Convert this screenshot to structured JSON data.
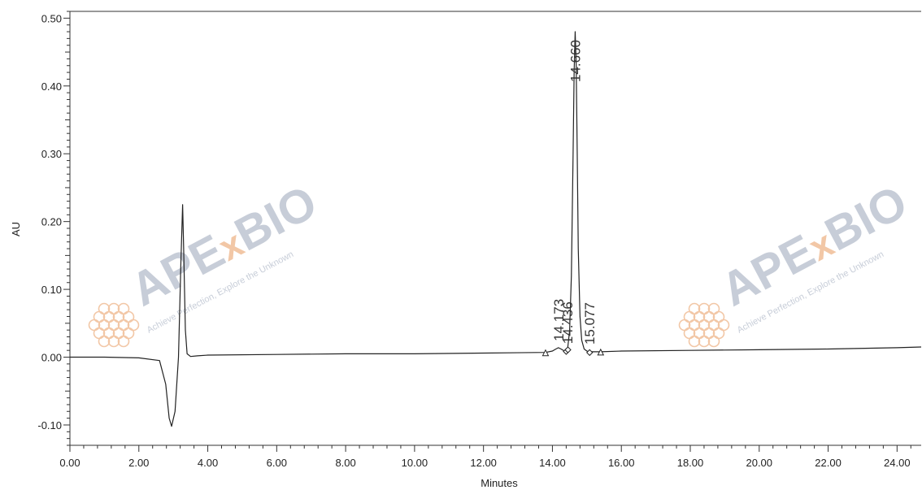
{
  "chart_data": {
    "type": "line",
    "title": "",
    "xlabel": "Minutes",
    "ylabel": "AU",
    "xlim": [
      0,
      24.7
    ],
    "ylim": [
      -0.13,
      0.51
    ],
    "x_ticks": [
      "0.00",
      "2.00",
      "4.00",
      "6.00",
      "8.00",
      "10.00",
      "12.00",
      "14.00",
      "16.00",
      "18.00",
      "20.00",
      "22.00",
      "24.00"
    ],
    "y_ticks": [
      "-0.10",
      "0.00",
      "0.10",
      "0.20",
      "0.30",
      "0.40",
      "0.50"
    ],
    "grid": false,
    "series": [
      {
        "x": [
          0.0,
          1.0,
          2.0,
          2.6,
          2.78,
          2.88,
          2.95,
          3.05,
          3.15,
          3.22,
          3.27,
          3.3,
          3.35,
          3.4,
          3.5,
          3.7,
          4.0,
          6.0,
          8.0,
          10.0,
          12.0,
          13.8,
          14.0,
          14.1,
          14.173,
          14.25,
          14.35,
          14.436,
          14.5,
          14.55,
          14.6,
          14.63,
          14.66,
          14.69,
          14.72,
          14.75,
          14.8,
          14.85,
          14.92,
          15.0,
          15.077,
          15.2,
          15.4,
          16.0,
          18.0,
          20.0,
          22.0,
          24.0,
          24.7
        ],
        "y": [
          0.0,
          0.0,
          -0.001,
          -0.005,
          -0.04,
          -0.09,
          -0.102,
          -0.08,
          0.0,
          0.14,
          0.225,
          0.16,
          0.04,
          0.005,
          0.001,
          0.002,
          0.003,
          0.004,
          0.005,
          0.005,
          0.006,
          0.007,
          0.009,
          0.012,
          0.014,
          0.012,
          0.009,
          0.01,
          0.04,
          0.12,
          0.3,
          0.42,
          0.48,
          0.43,
          0.3,
          0.16,
          0.06,
          0.025,
          0.012,
          0.009,
          0.008,
          0.008,
          0.008,
          0.009,
          0.01,
          0.011,
          0.012,
          0.014,
          0.015
        ]
      }
    ],
    "peak_labels": [
      {
        "text": "14.173",
        "x": 14.173,
        "y": 0.014
      },
      {
        "text": "14.436",
        "x": 14.436,
        "y": 0.01
      },
      {
        "text": "14.660",
        "x": 14.66,
        "y": 0.48
      },
      {
        "text": "15.077",
        "x": 15.077,
        "y": 0.009
      }
    ],
    "baseline_markers": [
      {
        "shape": "triangle",
        "x": 13.8
      },
      {
        "shape": "diamond",
        "x": 14.4
      },
      {
        "shape": "diamond",
        "x": 14.45
      },
      {
        "shape": "diamond",
        "x": 15.08
      },
      {
        "shape": "triangle",
        "x": 15.4
      }
    ]
  },
  "watermarks": [
    {
      "brand": "APExBIO",
      "tagline": "Achieve Perfection, Explore the Unknown"
    },
    {
      "brand": "APExBIO",
      "tagline": "Achieve Perfection, Explore the Unknown"
    }
  ],
  "colors": {
    "line": "#222222",
    "axis": "#333333",
    "watermark_blue": "#c7cdd8",
    "watermark_orange": "#f2c7a6"
  }
}
